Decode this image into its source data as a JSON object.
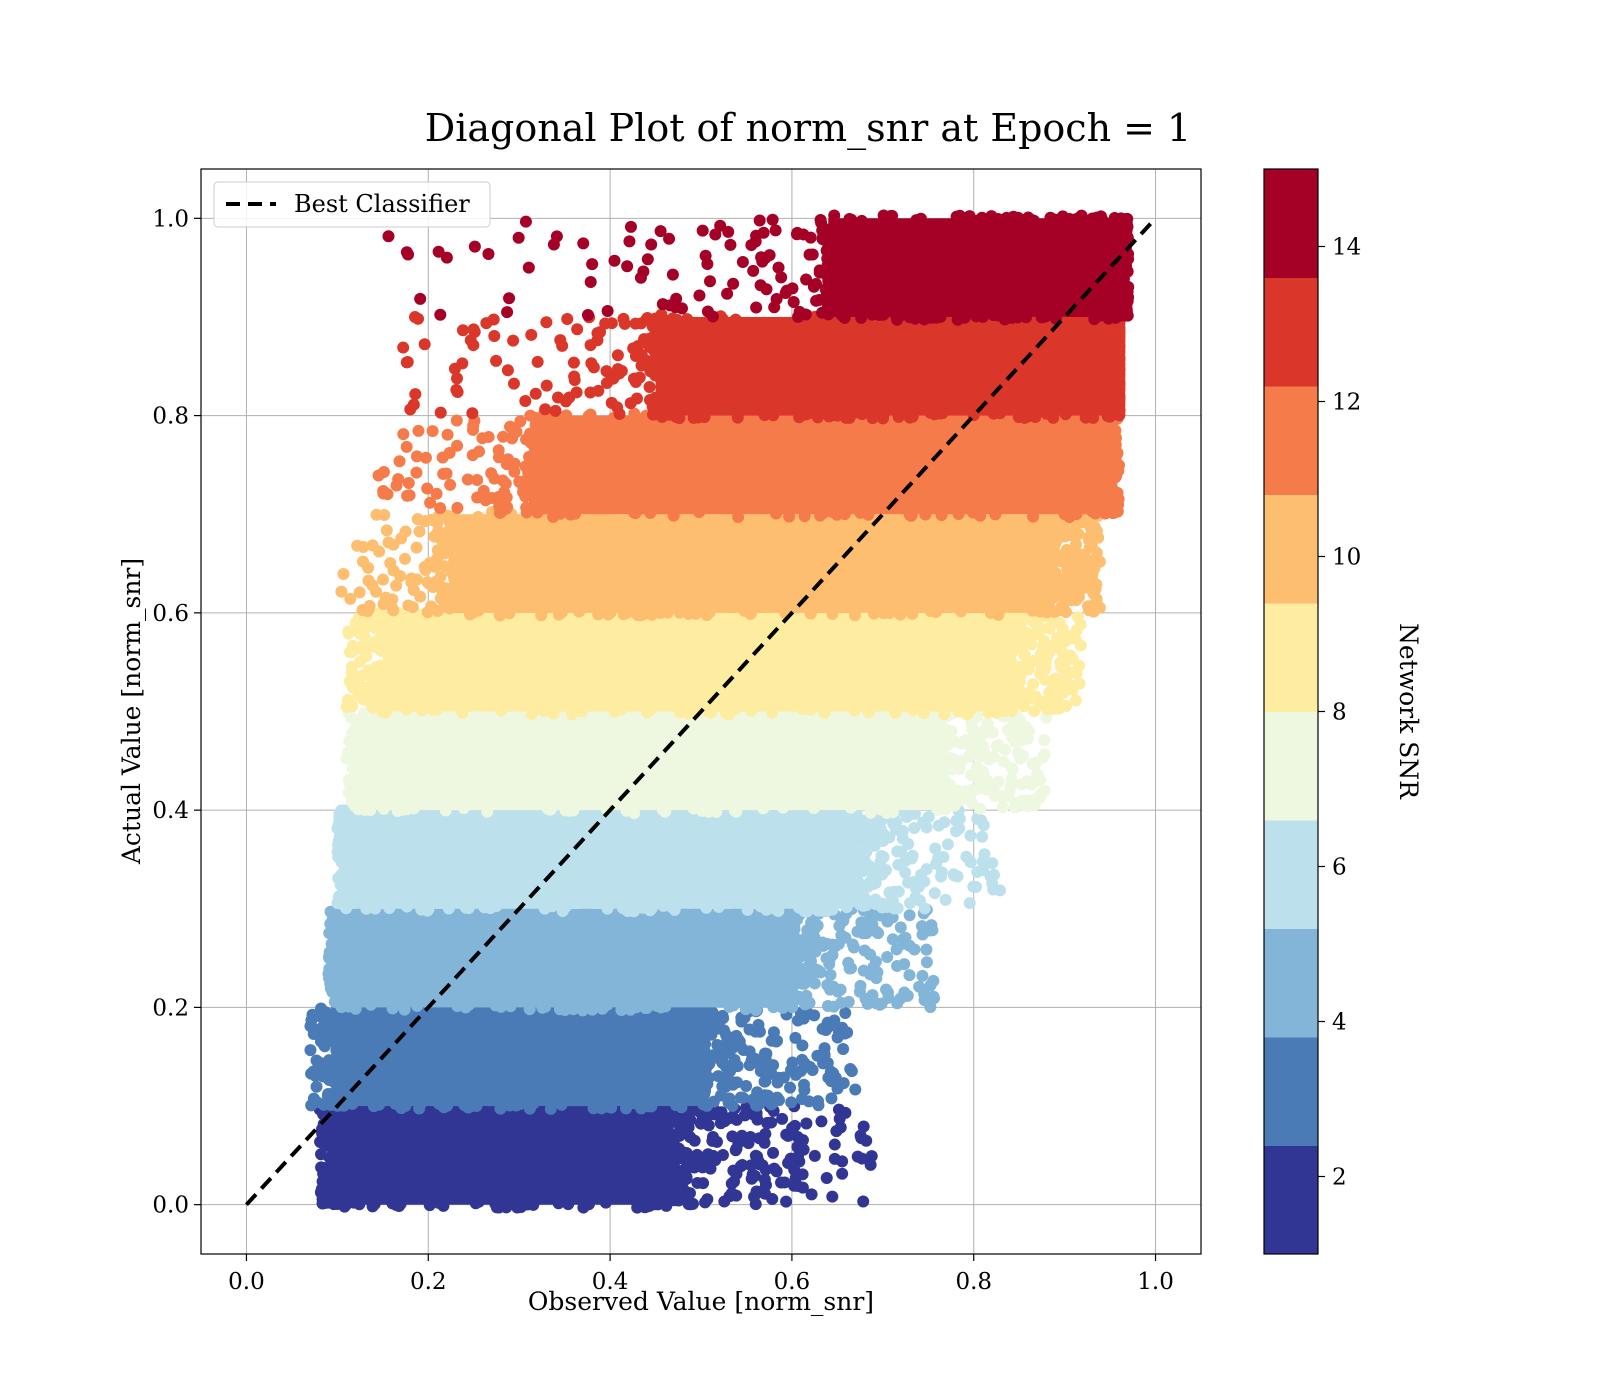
{
  "chart_data": {
    "type": "scatter",
    "title": "Diagonal Plot of norm_snr at Epoch = 1",
    "xlabel": "Observed Value [norm_snr]",
    "ylabel": "Actual Value [norm_snr]",
    "xlim": [
      -0.05,
      1.05
    ],
    "ylim": [
      -0.05,
      1.05
    ],
    "xticks": [
      "0.0",
      "0.2",
      "0.4",
      "0.6",
      "0.8",
      "1.0"
    ],
    "yticks": [
      "0.0",
      "0.2",
      "0.4",
      "0.6",
      "0.8",
      "1.0"
    ],
    "grid": true,
    "legend": {
      "placement": "upper-left",
      "entries": [
        {
          "label": "Best Classifier",
          "style": "dashed",
          "color": "#000000"
        }
      ]
    },
    "reference_line": {
      "label": "Best Classifier",
      "x": [
        0.0,
        1.0
      ],
      "y": [
        0.0,
        1.0
      ],
      "style": "dashed",
      "color": "#000000"
    },
    "colorbar": {
      "label": "Network SNR",
      "range": [
        1,
        15
      ],
      "ticks": [
        "2",
        "4",
        "6",
        "8",
        "10",
        "12",
        "14"
      ],
      "tick_values": [
        2,
        4,
        6,
        8,
        10,
        12,
        14
      ],
      "colors": [
        "#313695",
        "#4a7bb7",
        "#82b5d7",
        "#bde1ec",
        "#eef7e0",
        "#feeda1",
        "#fdbe70",
        "#f57b4b",
        "#da372a",
        "#a50026"
      ]
    },
    "bands": [
      {
        "y_range": [
          0.0,
          0.1
        ],
        "color": "#313695",
        "x_dense": [
          0.1,
          0.47
        ],
        "x_sparse": [
          0.08,
          0.69
        ]
      },
      {
        "y_range": [
          0.1,
          0.2
        ],
        "color": "#4a7bb7",
        "x_dense": [
          0.1,
          0.5
        ],
        "x_sparse": [
          0.07,
          0.67
        ]
      },
      {
        "y_range": [
          0.2,
          0.3
        ],
        "color": "#82b5d7",
        "x_dense": [
          0.11,
          0.6
        ],
        "x_sparse": [
          0.09,
          0.76
        ]
      },
      {
        "y_range": [
          0.3,
          0.4
        ],
        "color": "#bde1ec",
        "x_dense": [
          0.11,
          0.66
        ],
        "x_sparse": [
          0.1,
          0.83
        ]
      },
      {
        "y_range": [
          0.4,
          0.5
        ],
        "color": "#eef7e0",
        "x_dense": [
          0.13,
          0.76
        ],
        "x_sparse": [
          0.11,
          0.88
        ]
      },
      {
        "y_range": [
          0.5,
          0.6
        ],
        "color": "#feeda1",
        "x_dense": [
          0.15,
          0.83
        ],
        "x_sparse": [
          0.11,
          0.92
        ]
      },
      {
        "y_range": [
          0.6,
          0.7
        ],
        "color": "#fdbe70",
        "x_dense": [
          0.23,
          0.88
        ],
        "x_sparse": [
          0.1,
          0.94
        ]
      },
      {
        "y_range": [
          0.7,
          0.8
        ],
        "color": "#f57b4b",
        "x_dense": [
          0.32,
          0.94
        ],
        "x_sparse": [
          0.14,
          0.96
        ]
      },
      {
        "y_range": [
          0.8,
          0.9
        ],
        "color": "#da372a",
        "x_dense": [
          0.45,
          0.96
        ],
        "x_sparse": [
          0.17,
          0.96
        ]
      },
      {
        "y_range": [
          0.9,
          1.0
        ],
        "color": "#a50026",
        "x_dense": [
          0.64,
          0.96
        ],
        "x_sparse": [
          0.15,
          0.97
        ]
      }
    ]
  }
}
